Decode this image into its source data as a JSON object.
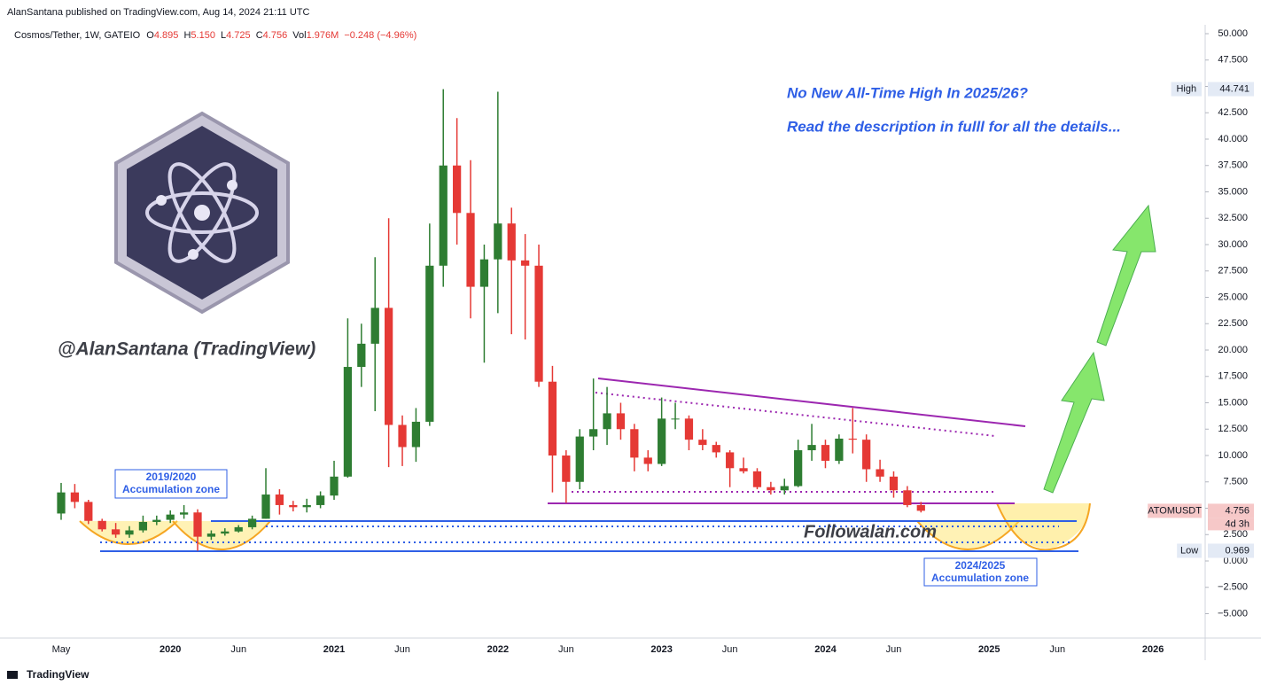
{
  "header": {
    "publisher": "AlanSantana published on TradingView.com, Aug 14, 2024 21:11 UTC",
    "symbol": "Cosmos/Tether, 1W, GATEIO",
    "ohlc": [
      {
        "label": "O",
        "value": "4.895"
      },
      {
        "label": "H",
        "value": "5.150"
      },
      {
        "label": "L",
        "value": "4.725"
      },
      {
        "label": "C",
        "value": "4.756"
      }
    ],
    "volume_label": "Vol",
    "volume": "1.976M",
    "change": "−0.248 (−4.96%)"
  },
  "chart_data": {
    "type": "candlestick",
    "annotations": [
      "No New All-Time High In 2025/26?",
      "Read the description in fulll for all the details...",
      "@AlanSantana (TradingView)",
      "Followalan.com"
    ],
    "zones": [
      {
        "line1": "2019/2020",
        "line2": "Accumulation zone"
      },
      {
        "line1": "2024/2025",
        "line2": "Accumulation zone"
      }
    ],
    "categories": [
      "May",
      null,
      null,
      null,
      null,
      null,
      null,
      null,
      "2020",
      null,
      null,
      null,
      null,
      "Jun",
      null,
      null,
      null,
      null,
      null,
      null,
      "2021",
      null,
      null,
      null,
      null,
      "Jun",
      null,
      null,
      null,
      null,
      null,
      null,
      "2022",
      null,
      null,
      null,
      null,
      "Jun",
      null,
      null,
      null,
      null,
      null,
      null,
      "2023",
      null,
      null,
      null,
      null,
      "Jun",
      null,
      null,
      null,
      null,
      null,
      null,
      "2024",
      null,
      null,
      null,
      null,
      "Jun",
      null,
      null,
      null,
      null,
      null,
      null,
      "2025",
      null,
      null,
      null,
      null,
      "Jun",
      null,
      null,
      null,
      null,
      null,
      null,
      "2026",
      null,
      null,
      null
    ],
    "open": [
      4.5,
      6.5,
      5.6,
      3.8,
      3.0,
      2.5,
      2.9,
      3.7,
      3.9,
      4.4,
      4.6,
      2.3,
      2.6,
      2.8,
      3.2,
      4.0,
      6.3,
      5.3,
      5.1,
      5.3,
      6.2,
      8.0,
      18.4,
      20.6,
      24.0,
      12.9,
      10.8,
      13.2,
      28.0,
      37.5,
      33.0,
      26.0,
      28.6,
      32.0,
      28.5,
      28.0,
      17.0,
      10.0,
      7.5,
      11.8,
      12.5,
      14.0,
      12.5,
      9.8,
      9.2,
      13.5,
      13.5,
      11.5,
      11.0,
      10.3,
      8.8,
      8.5,
      7.0,
      6.7,
      7.1,
      10.5,
      11.0,
      9.5,
      11.6,
      11.5,
      8.7,
      8.0,
      6.7,
      5.3,
      null,
      null,
      null,
      null,
      null,
      null,
      null,
      null,
      null,
      null,
      null,
      null,
      null,
      null,
      null,
      null,
      null,
      null,
      null,
      null
    ],
    "high": [
      7.4,
      7.3,
      5.8,
      4.0,
      3.6,
      3.3,
      4.3,
      4.3,
      4.8,
      5.3,
      4.9,
      2.9,
      3.1,
      3.4,
      4.3,
      8.8,
      6.8,
      5.7,
      5.9,
      6.6,
      9.5,
      23.0,
      22.5,
      28.8,
      32.5,
      13.8,
      14.5,
      32.0,
      44.741,
      42.0,
      38.0,
      30.0,
      44.5,
      33.5,
      31.0,
      30.0,
      18.5,
      10.5,
      12.5,
      17.3,
      16.5,
      15.0,
      13.0,
      10.5,
      15.5,
      15.0,
      13.8,
      12.5,
      11.3,
      10.5,
      9.8,
      8.8,
      7.5,
      7.8,
      11.5,
      13.0,
      11.5,
      12.0,
      14.5,
      12.0,
      9.6,
      8.5,
      7.1,
      5.6,
      null,
      null,
      null,
      null,
      null,
      null,
      null,
      null,
      null,
      null,
      null,
      null,
      null,
      null,
      null,
      null,
      null,
      null,
      null,
      null
    ],
    "low": [
      3.9,
      5.0,
      3.5,
      2.8,
      2.2,
      2.2,
      2.7,
      3.4,
      3.6,
      4.0,
      0.969,
      2.0,
      2.4,
      2.7,
      3.0,
      4.0,
      4.4,
      4.7,
      4.6,
      5.0,
      5.8,
      7.9,
      16.5,
      14.2,
      8.9,
      9.0,
      9.4,
      12.8,
      26.0,
      30.0,
      23.0,
      18.8,
      23.5,
      21.5,
      21.0,
      16.5,
      6.5,
      5.5,
      6.8,
      10.5,
      11.0,
      11.5,
      8.5,
      8.5,
      9.0,
      12.5,
      10.5,
      10.5,
      9.8,
      7.0,
      8.3,
      6.8,
      6.3,
      6.3,
      7.0,
      9.5,
      8.8,
      9.2,
      10.2,
      7.5,
      7.5,
      6.0,
      5.1,
      4.6,
      null,
      null,
      null,
      null,
      null,
      null,
      null,
      null,
      null,
      null,
      null,
      null,
      null,
      null,
      null,
      null,
      null,
      null,
      null,
      null
    ],
    "close": [
      6.5,
      5.6,
      3.8,
      3.0,
      2.5,
      2.9,
      3.7,
      3.9,
      4.4,
      4.6,
      2.3,
      2.6,
      2.8,
      3.2,
      4.0,
      6.3,
      5.3,
      5.1,
      5.3,
      6.2,
      8.0,
      18.4,
      20.6,
      24.0,
      12.9,
      10.8,
      13.2,
      28.0,
      37.5,
      33.0,
      26.0,
      28.6,
      32.0,
      28.5,
      28.0,
      17.0,
      10.0,
      7.5,
      11.8,
      12.5,
      14.0,
      12.5,
      9.8,
      9.2,
      13.5,
      13.5,
      11.5,
      11.0,
      10.3,
      8.8,
      8.5,
      7.0,
      6.7,
      7.1,
      10.5,
      11.0,
      9.5,
      11.6,
      11.5,
      8.7,
      8.0,
      6.7,
      5.3,
      4.756,
      null,
      null,
      null,
      null,
      null,
      null,
      null,
      null,
      null,
      null,
      null,
      null,
      null,
      null,
      null,
      null,
      null,
      null,
      null,
      null
    ],
    "up_color": "#2e7d32",
    "down_color": "#e53935",
    "ylim": [
      -7.31,
      50.84
    ],
    "yticks": [
      {
        "value": 50,
        "label": "50.000"
      },
      {
        "value": 47.5,
        "label": "47.500"
      },
      {
        "value": 45,
        "label": "45.000"
      },
      {
        "value": 42.5,
        "label": "42.500"
      },
      {
        "value": 40,
        "label": "40.000"
      },
      {
        "value": 37.5,
        "label": "37.500"
      },
      {
        "value": 35,
        "label": "35.000"
      },
      {
        "value": 32.5,
        "label": "32.500"
      },
      {
        "value": 30,
        "label": "30.000"
      },
      {
        "value": 27.5,
        "label": "27.500"
      },
      {
        "value": 25,
        "label": "25.000"
      },
      {
        "value": 22.5,
        "label": "22.500"
      },
      {
        "value": 20,
        "label": "20.000"
      },
      {
        "value": 17.5,
        "label": "17.500"
      },
      {
        "value": 15,
        "label": "15.000"
      },
      {
        "value": 12.5,
        "label": "12.500"
      },
      {
        "value": 10,
        "label": "10.000"
      },
      {
        "value": 7.5,
        "label": "7.500"
      },
      {
        "value": 5,
        "label": "5.000"
      },
      {
        "value": 2.5,
        "label": "2.500"
      },
      {
        "value": 0,
        "label": "0.000"
      },
      {
        "value": -2.5,
        "label": "−2.500"
      },
      {
        "value": -5,
        "label": "−5.000"
      }
    ],
    "price_labels": [
      {
        "text": "High",
        "value": 44.741,
        "bg": "#e3eaf5",
        "fg": "#131722"
      },
      {
        "text": "ATOMUSDT",
        "value": 4.756,
        "sub": "4d 3h",
        "bg": "#f6c8c8",
        "fg": "#131722"
      },
      {
        "text": "Low",
        "value": 0.969,
        "bg": "#e3eaf5",
        "fg": "#131722"
      }
    ]
  },
  "footer": "TradingView"
}
